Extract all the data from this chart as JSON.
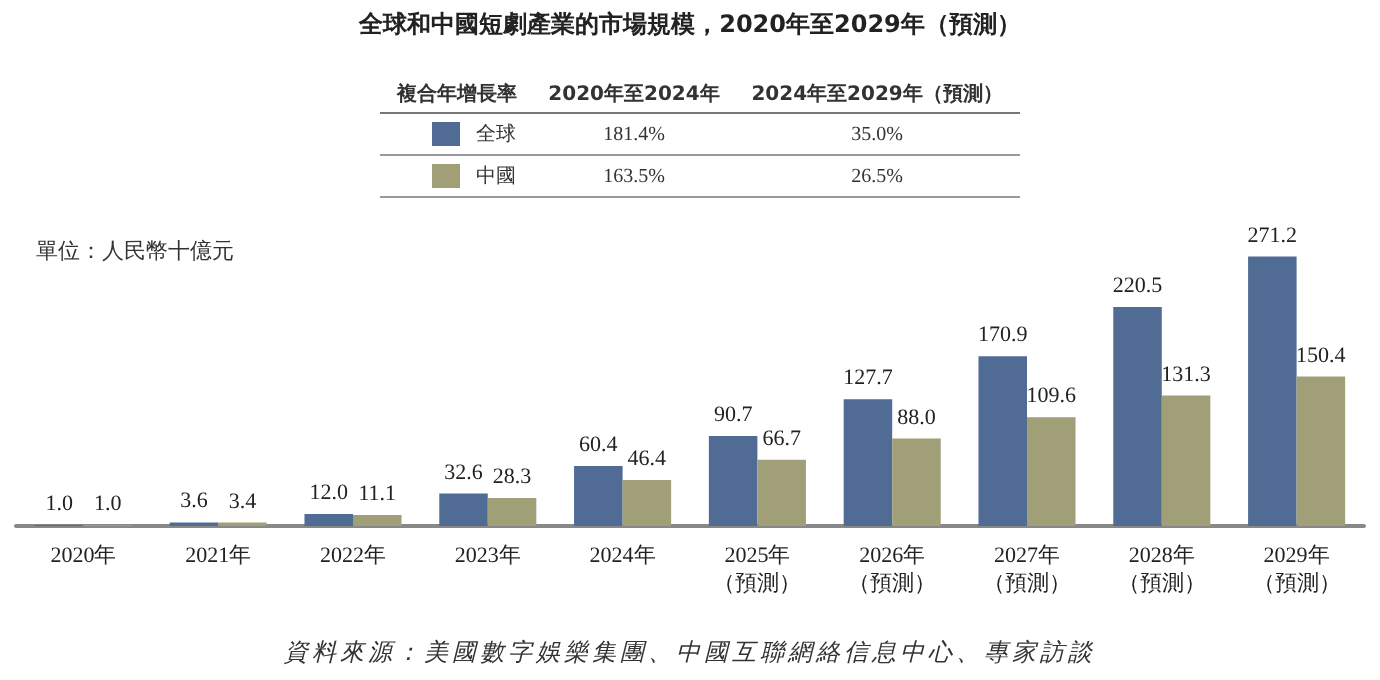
{
  "chart_data": {
    "type": "bar",
    "title": "全球和中國短劇產業的市場規模，2020年至2029年（預測）",
    "ylabel": "單位：人民幣十億元",
    "categories": [
      "2020年",
      "2021年",
      "2022年",
      "2023年",
      "2024年",
      "2025年（預測）",
      "2026年（預測）",
      "2027年（預測）",
      "2028年（預測）",
      "2029年（預測）"
    ],
    "series": [
      {
        "name": "全球",
        "color": "#516c94",
        "values": [
          1.0,
          3.6,
          12.0,
          32.6,
          60.4,
          90.7,
          127.7,
          170.9,
          220.5,
          271.2
        ],
        "value_labels": [
          "1.0",
          "3.6",
          "12.0",
          "32.6",
          "60.4",
          "90.7",
          "127.7",
          "170.9",
          "220.5",
          "271.2"
        ]
      },
      {
        "name": "中國",
        "color": "#a19f78",
        "values": [
          1.0,
          3.4,
          11.1,
          28.3,
          46.4,
          66.7,
          88.0,
          109.6,
          131.3,
          150.4
        ],
        "value_labels": [
          "1.0",
          "3.4",
          "11.1",
          "28.3",
          "46.4",
          "66.7",
          "88.0",
          "109.6",
          "131.3",
          "150.4"
        ]
      }
    ],
    "legend": "top",
    "annotations": [
      "複合年增長率",
      "2020年至2024年",
      "2024年至2029年（預測）",
      "181.4%",
      "35.0%",
      "163.5%",
      "26.5%",
      "資料來源：美國數字娛樂集團、中國互聯網絡信息中心、專家訪談"
    ]
  }
}
